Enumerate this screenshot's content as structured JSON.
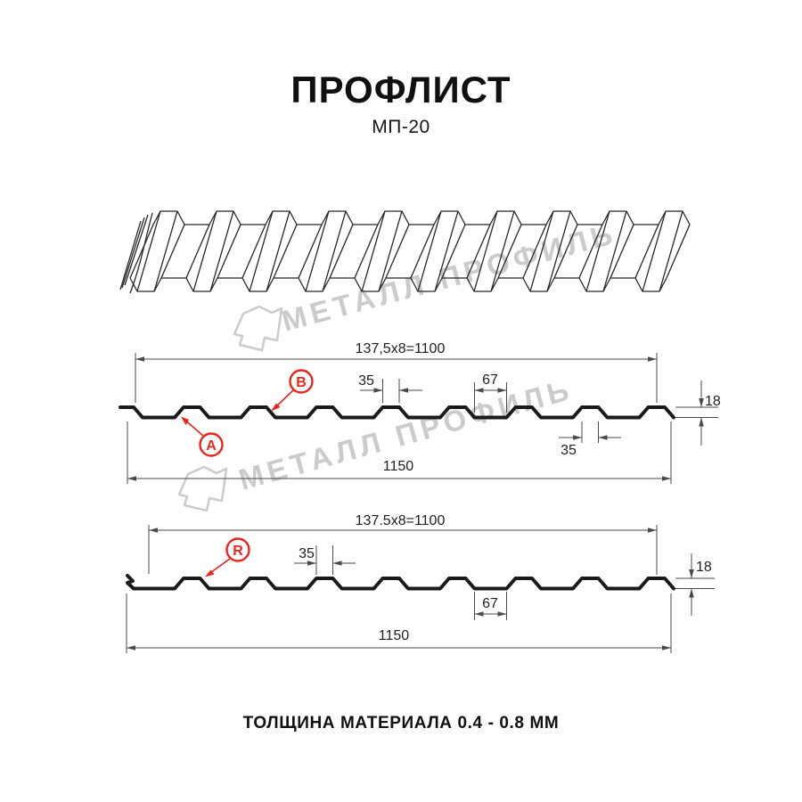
{
  "header": {
    "title": "ПРОФЛИСТ",
    "subtitle": "МП-20"
  },
  "watermark": {
    "brand": "МЕТАЛЛ ПРОФИЛЬ"
  },
  "diagram1": {
    "top_width": "137,5x8=1100",
    "crest_width_top": "35",
    "valley_width": "67",
    "crest_width_bottom": "35",
    "height": "18",
    "total_width": "1150",
    "label_a": "A",
    "label_b": "B"
  },
  "diagram2": {
    "top_width": "137.5x8=1100",
    "crest_width": "35",
    "valley_width": "67",
    "height": "18",
    "total_width": "1150",
    "label_r": "R"
  },
  "footer": {
    "thickness_note": "ТОЛЩИНА МАТЕРИАЛА 0.4 - 0.8 ММ"
  },
  "colors": {
    "accent_red": "#e8261b",
    "line_dark": "#1a1a1a",
    "dim_line": "#4a4a4a",
    "watermark_gray": "#cbcbcb"
  }
}
